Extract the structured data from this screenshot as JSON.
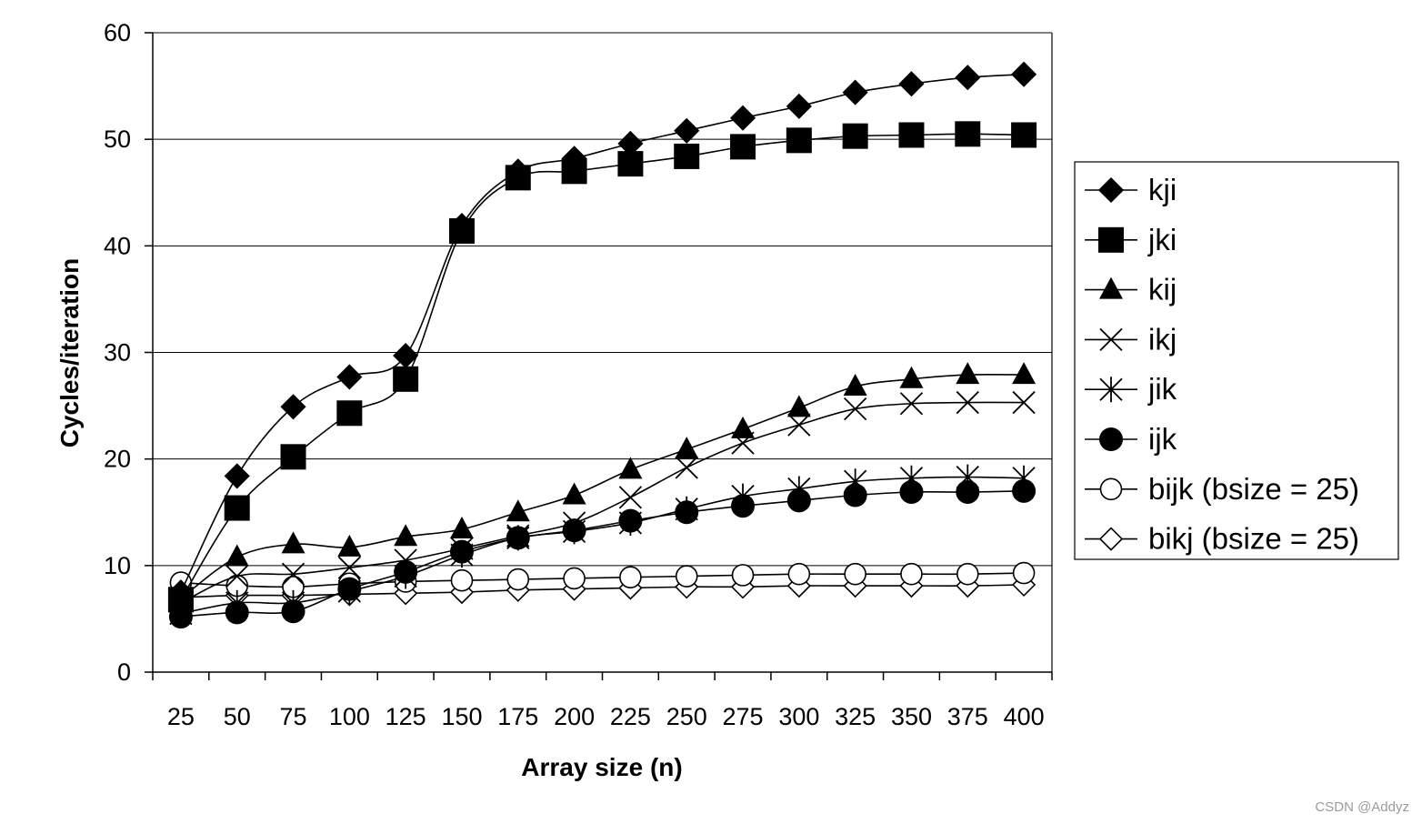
{
  "chart_data": {
    "type": "line",
    "title": "",
    "xlabel": "Array size (n)",
    "ylabel": "Cycles/iteration",
    "ylim": [
      0,
      60
    ],
    "yticks": [
      0,
      10,
      20,
      30,
      40,
      50,
      60
    ],
    "grid": "horizontal",
    "legend": "right",
    "categories": [
      "25",
      "50",
      "75",
      "100",
      "125",
      "150",
      "175",
      "200",
      "225",
      "250",
      "275",
      "300",
      "325",
      "350",
      "375",
      "400"
    ],
    "series": [
      {
        "name": "kji",
        "marker": "diamond-filled",
        "values": [
          7.5,
          18.4,
          24.9,
          27.7,
          29.7,
          41.9,
          47.0,
          48.2,
          49.6,
          50.8,
          52.0,
          53.1,
          54.4,
          55.2,
          55.8,
          56.1
        ]
      },
      {
        "name": "jki",
        "marker": "square-filled",
        "values": [
          6.8,
          15.4,
          20.2,
          24.3,
          27.5,
          41.4,
          46.4,
          47.0,
          47.7,
          48.4,
          49.3,
          49.9,
          50.3,
          50.4,
          50.5,
          50.4
        ]
      },
      {
        "name": "kij",
        "marker": "triangle-filled",
        "values": [
          6.9,
          10.8,
          12.0,
          11.7,
          12.7,
          13.4,
          15.0,
          16.6,
          19.0,
          20.9,
          22.8,
          24.8,
          26.8,
          27.5,
          27.9,
          27.9
        ]
      },
      {
        "name": "ikj",
        "marker": "x",
        "values": [
          6.5,
          9.0,
          9.2,
          9.8,
          10.5,
          11.6,
          12.8,
          14.0,
          16.4,
          19.2,
          21.5,
          23.2,
          24.7,
          25.2,
          25.3,
          25.3
        ]
      },
      {
        "name": "jik",
        "marker": "asterisk",
        "values": [
          5.5,
          6.5,
          6.5,
          7.6,
          9.0,
          11.0,
          12.6,
          13.2,
          14.0,
          15.3,
          16.5,
          17.2,
          17.9,
          18.2,
          18.3,
          18.2
        ]
      },
      {
        "name": "ijk",
        "marker": "circle-filled",
        "values": [
          5.2,
          5.6,
          5.7,
          7.8,
          9.4,
          11.3,
          12.6,
          13.3,
          14.2,
          15.0,
          15.6,
          16.1,
          16.6,
          16.9,
          16.9,
          17.0
        ]
      },
      {
        "name": "bijk (bsize = 25)",
        "marker": "circle-open",
        "values": [
          8.4,
          8.1,
          8.0,
          8.3,
          8.5,
          8.6,
          8.7,
          8.8,
          8.9,
          9.0,
          9.1,
          9.2,
          9.2,
          9.2,
          9.2,
          9.3
        ]
      },
      {
        "name": "bikj (bsize = 25)",
        "marker": "diamond-open",
        "values": [
          7.0,
          7.2,
          7.2,
          7.3,
          7.4,
          7.5,
          7.7,
          7.8,
          7.9,
          8.0,
          8.0,
          8.1,
          8.1,
          8.1,
          8.1,
          8.2
        ]
      }
    ]
  },
  "watermark": "CSDN @Addyz"
}
